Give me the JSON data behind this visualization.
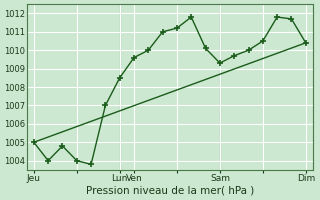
{
  "bg_color": "#cce8d0",
  "grid_color": "#ffffff",
  "line_color": "#1a5c1a",
  "marker_color": "#1a5c1a",
  "xlabel": "Pression niveau de la mer( hPa )",
  "ylim": [
    1003.5,
    1012.5
  ],
  "yticks": [
    1004,
    1005,
    1006,
    1007,
    1008,
    1009,
    1010,
    1011,
    1012
  ],
  "xtick_labels": [
    "Jeu",
    "",
    "Lun",
    "Ven",
    "",
    "Sam",
    "",
    "Dim"
  ],
  "xtick_positions": [
    0,
    3,
    6,
    7,
    10,
    13,
    16,
    19
  ],
  "series1_x": [
    0,
    1,
    2,
    3,
    4,
    5,
    6,
    7,
    8,
    9,
    10,
    11,
    12,
    13,
    14,
    15,
    16,
    17,
    18,
    19
  ],
  "series1_y": [
    1005.0,
    1004.0,
    1004.8,
    1004.0,
    1003.8,
    1007.0,
    1008.5,
    1009.6,
    1010.0,
    1011.0,
    1011.2,
    1011.8,
    1010.1,
    1009.3,
    1009.7,
    1010.0,
    1010.5,
    1011.8,
    1011.7,
    1010.4
  ],
  "series2_x": [
    0,
    19
  ],
  "series2_y": [
    1005.0,
    1010.4
  ],
  "vline_positions": [
    6.0,
    13.0
  ]
}
